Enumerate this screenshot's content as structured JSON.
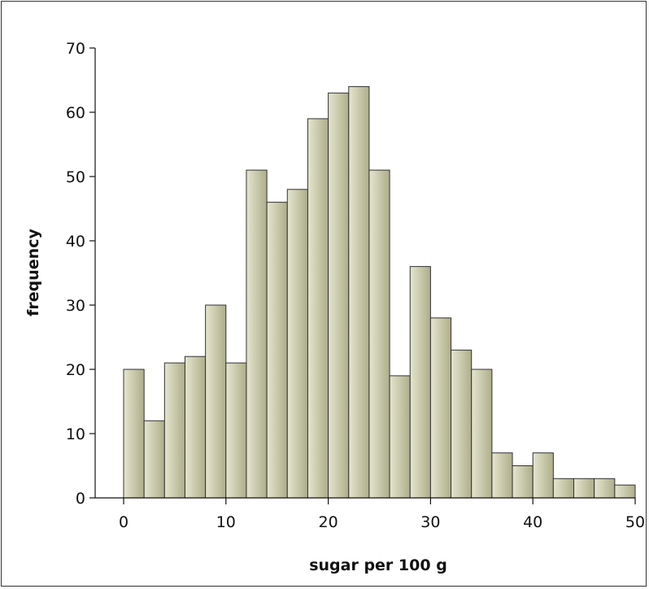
{
  "chart_data": {
    "type": "bar",
    "title": "",
    "xlabel": "sugar per 100 g",
    "ylabel": "frequency",
    "x_range": [
      0,
      50
    ],
    "ylim": [
      0,
      70
    ],
    "x_ticks": [
      0,
      10,
      20,
      30,
      40,
      50
    ],
    "y_ticks": [
      0,
      10,
      20,
      30,
      40,
      50,
      60,
      70
    ],
    "bin_width": 2,
    "bins": [
      {
        "start": 0,
        "end": 2,
        "value": 20
      },
      {
        "start": 2,
        "end": 4,
        "value": 12
      },
      {
        "start": 4,
        "end": 6,
        "value": 21
      },
      {
        "start": 6,
        "end": 8,
        "value": 22
      },
      {
        "start": 8,
        "end": 10,
        "value": 30
      },
      {
        "start": 10,
        "end": 12,
        "value": 21
      },
      {
        "start": 12,
        "end": 14,
        "value": 51
      },
      {
        "start": 14,
        "end": 16,
        "value": 46
      },
      {
        "start": 16,
        "end": 18,
        "value": 48
      },
      {
        "start": 18,
        "end": 20,
        "value": 59
      },
      {
        "start": 20,
        "end": 22,
        "value": 63
      },
      {
        "start": 22,
        "end": 24,
        "value": 64
      },
      {
        "start": 24,
        "end": 26,
        "value": 51
      },
      {
        "start": 26,
        "end": 28,
        "value": 19
      },
      {
        "start": 28,
        "end": 30,
        "value": 36
      },
      {
        "start": 30,
        "end": 32,
        "value": 28
      },
      {
        "start": 32,
        "end": 34,
        "value": 23
      },
      {
        "start": 34,
        "end": 36,
        "value": 20
      },
      {
        "start": 36,
        "end": 38,
        "value": 7
      },
      {
        "start": 38,
        "end": 40,
        "value": 5
      },
      {
        "start": 40,
        "end": 42,
        "value": 7
      },
      {
        "start": 42,
        "end": 44,
        "value": 3
      },
      {
        "start": 44,
        "end": 46,
        "value": 3
      },
      {
        "start": 46,
        "end": 48,
        "value": 3
      },
      {
        "start": 48,
        "end": 50,
        "value": 2
      }
    ],
    "grid": false,
    "legend": "none",
    "colors": {
      "bar_fill_light": "#e4e5cf",
      "bar_fill_dark": "#aeae8a",
      "bar_stroke": "#333333",
      "axis": "#111111"
    }
  }
}
